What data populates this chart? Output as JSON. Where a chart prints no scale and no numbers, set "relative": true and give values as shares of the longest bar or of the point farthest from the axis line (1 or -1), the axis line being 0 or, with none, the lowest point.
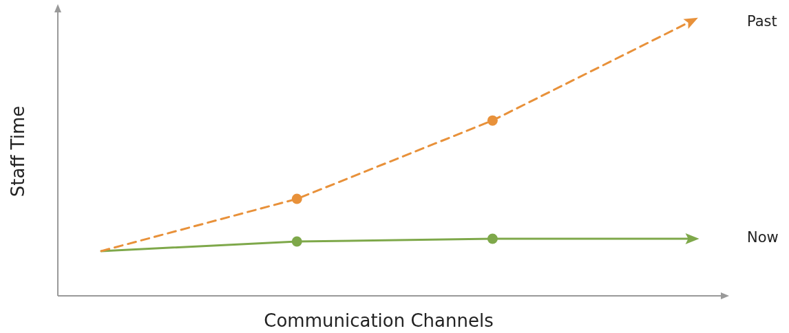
{
  "chart_data": {
    "type": "line",
    "relative": true,
    "xlabel": "Communication Channels",
    "ylabel": "Staff Time",
    "categories": [
      null,
      null,
      null,
      null
    ],
    "legend": false,
    "marker": "circle",
    "series": [
      {
        "name": "Past",
        "color": "#e8913a",
        "line_style": "dashed",
        "values": [
          0.164,
          0.355,
          0.642,
          1
        ]
      },
      {
        "name": "Now",
        "color": "#7ea84a",
        "line_style": "solid",
        "values": [
          0.164,
          0.199,
          0.209,
          0.209
        ]
      }
    ]
  }
}
